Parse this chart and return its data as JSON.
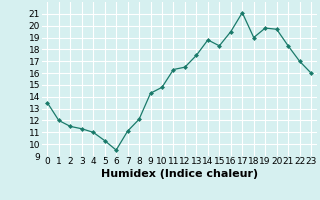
{
  "x": [
    0,
    1,
    2,
    3,
    4,
    5,
    6,
    7,
    8,
    9,
    10,
    11,
    12,
    13,
    14,
    15,
    16,
    17,
    18,
    19,
    20,
    21,
    22,
    23
  ],
  "y": [
    13.5,
    12.0,
    11.5,
    11.3,
    11.0,
    10.3,
    9.5,
    11.1,
    12.1,
    14.3,
    14.8,
    16.3,
    16.5,
    17.5,
    18.8,
    18.3,
    19.5,
    21.1,
    19.0,
    19.8,
    19.7,
    18.3,
    17.0,
    16.0
  ],
  "line_color": "#1a7a6a",
  "marker": "D",
  "marker_size": 2.0,
  "bg_color": "#d6f0f0",
  "grid_color": "#ffffff",
  "xlabel": "Humidex (Indice chaleur)",
  "ylim": [
    9,
    22
  ],
  "xlim": [
    -0.5,
    23.5
  ],
  "yticks": [
    9,
    10,
    11,
    12,
    13,
    14,
    15,
    16,
    17,
    18,
    19,
    20,
    21
  ],
  "xticks": [
    0,
    1,
    2,
    3,
    4,
    5,
    6,
    7,
    8,
    9,
    10,
    11,
    12,
    13,
    14,
    15,
    16,
    17,
    18,
    19,
    20,
    21,
    22,
    23
  ],
  "tick_fontsize": 6.5,
  "xlabel_fontsize": 8.0,
  "linewidth": 0.9
}
